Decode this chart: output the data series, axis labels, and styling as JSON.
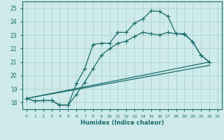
{
  "xlabel": "Humidex (Indice chaleur)",
  "bg_color": "#ceeaea",
  "grid_color": "#aacece",
  "line_color": "#1a6b6b",
  "xlim": [
    -0.5,
    23.5
  ],
  "ylim": [
    17.5,
    25.5
  ],
  "yticks": [
    18,
    19,
    20,
    21,
    22,
    23,
    24,
    25
  ],
  "xticks": [
    0,
    1,
    2,
    3,
    4,
    5,
    6,
    7,
    8,
    9,
    10,
    11,
    12,
    13,
    14,
    15,
    16,
    17,
    18,
    19,
    20,
    21,
    22,
    23
  ],
  "line1_x": [
    0,
    1,
    2,
    3,
    4,
    5,
    6,
    7,
    8,
    9,
    10,
    11,
    12,
    13,
    14,
    15,
    16,
    17,
    18,
    19,
    20,
    21,
    22
  ],
  "line1_y": [
    18.3,
    18.1,
    18.15,
    18.15,
    17.8,
    17.8,
    19.4,
    20.5,
    22.3,
    22.4,
    22.4,
    23.2,
    23.2,
    23.9,
    24.2,
    24.8,
    24.75,
    24.4,
    23.1,
    23.1,
    22.5,
    21.5,
    21.0
  ],
  "line2_x": [
    0,
    1,
    2,
    3,
    4,
    5,
    6,
    7,
    8,
    9,
    10,
    11,
    12,
    13,
    14,
    15,
    16,
    17,
    18,
    19,
    20,
    21,
    22
  ],
  "line2_y": [
    18.3,
    18.1,
    18.15,
    18.15,
    17.8,
    17.8,
    18.6,
    19.5,
    20.5,
    21.5,
    22.0,
    22.4,
    22.55,
    22.9,
    23.2,
    23.1,
    23.0,
    23.2,
    23.1,
    23.05,
    22.5,
    21.5,
    21.0
  ],
  "line3_x": [
    0,
    22
  ],
  "line3_y": [
    18.3,
    21.0
  ],
  "line4_x": [
    0,
    22
  ],
  "line4_y": [
    18.3,
    20.75
  ],
  "marker_size": 2.5,
  "line_width": 0.9
}
